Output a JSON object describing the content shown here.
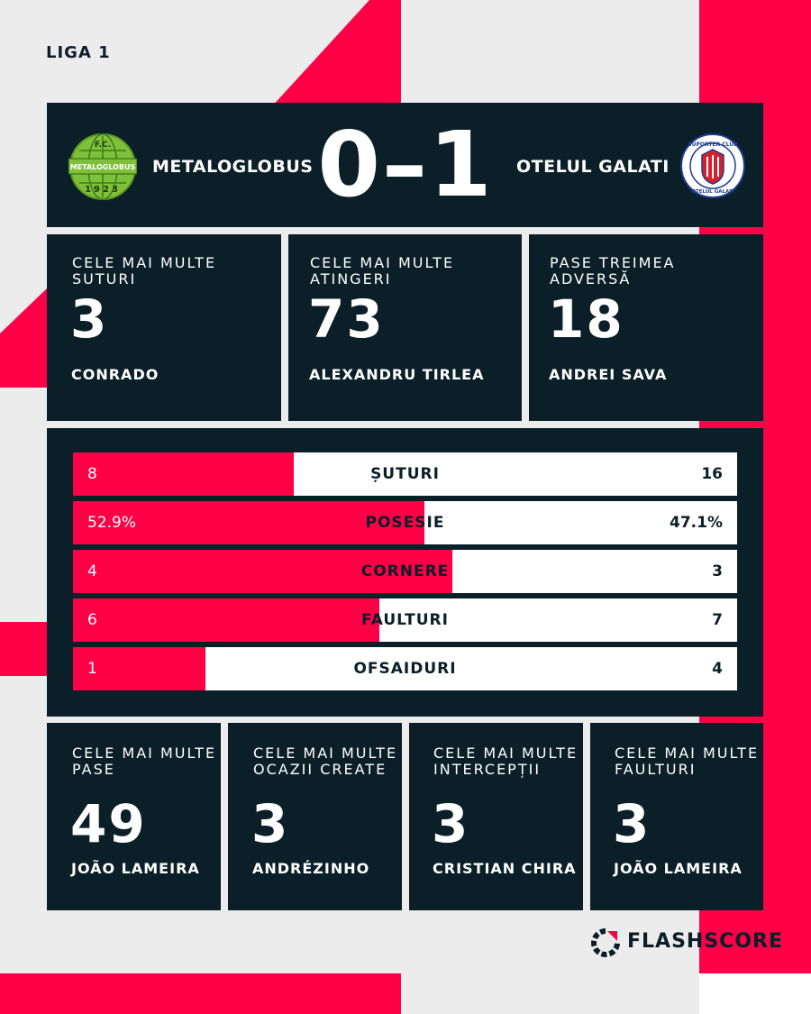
{
  "league": "LIGA 1",
  "match": {
    "home_team": "METALOGLOBUS",
    "away_team": "OTELUL GALATI",
    "score": "0–1"
  },
  "top_cards": [
    {
      "title": "CELE MAI MULTE SUTURI",
      "value": "3",
      "player": "CONRADO"
    },
    {
      "title": "CELE MAI MULTE ATINGERI",
      "value": "73",
      "player": "ALEXANDRU TIRLEA"
    },
    {
      "title": "PASE TREIMEA ADVERSĂ",
      "value": "18",
      "player": "ANDREI SAVA"
    }
  ],
  "comparison": [
    {
      "label": "ȘUTURI",
      "home": "8",
      "away": "16",
      "home_share": 0.333
    },
    {
      "label": "POSESIE",
      "home": "52.9%",
      "away": "47.1%",
      "home_share": 0.529
    },
    {
      "label": "CORNERE",
      "home": "4",
      "away": "3",
      "home_share": 0.571
    },
    {
      "label": "FAULTURI",
      "home": "6",
      "away": "7",
      "home_share": 0.462
    },
    {
      "label": "OFSAIDURI",
      "home": "1",
      "away": "4",
      "home_share": 0.2
    }
  ],
  "bottom_cards": [
    {
      "title": "CELE MAI MULTE PASE",
      "value": "49",
      "player": "JOÃO LAMEIRA"
    },
    {
      "title": "CELE MAI MULTE OCAZII CREATE",
      "value": "3",
      "player": "ANDRÉZINHO"
    },
    {
      "title": "CELE MAI MULTE INTERCEPȚII",
      "value": "3",
      "player": "CRISTIAN CHIRA"
    },
    {
      "title": "CELE MAI MULTE FAULTURI",
      "value": "3",
      "player": "JOÃO LAMEIRA"
    }
  ],
  "home_logo": {
    "top": "F.C.",
    "band": "METALOGLOBUS",
    "bottom": "1923"
  },
  "away_logo": {
    "top": "SUPORTER CLUB",
    "bottom": "OTELUL GALATI"
  },
  "brand": "FLASHSCORE",
  "colors": {
    "accent": "#ff0046",
    "panel": "#0b1f29",
    "background": "#ececec",
    "home_logo": "#7ec03a",
    "away_logo": "#1e3d8f"
  }
}
